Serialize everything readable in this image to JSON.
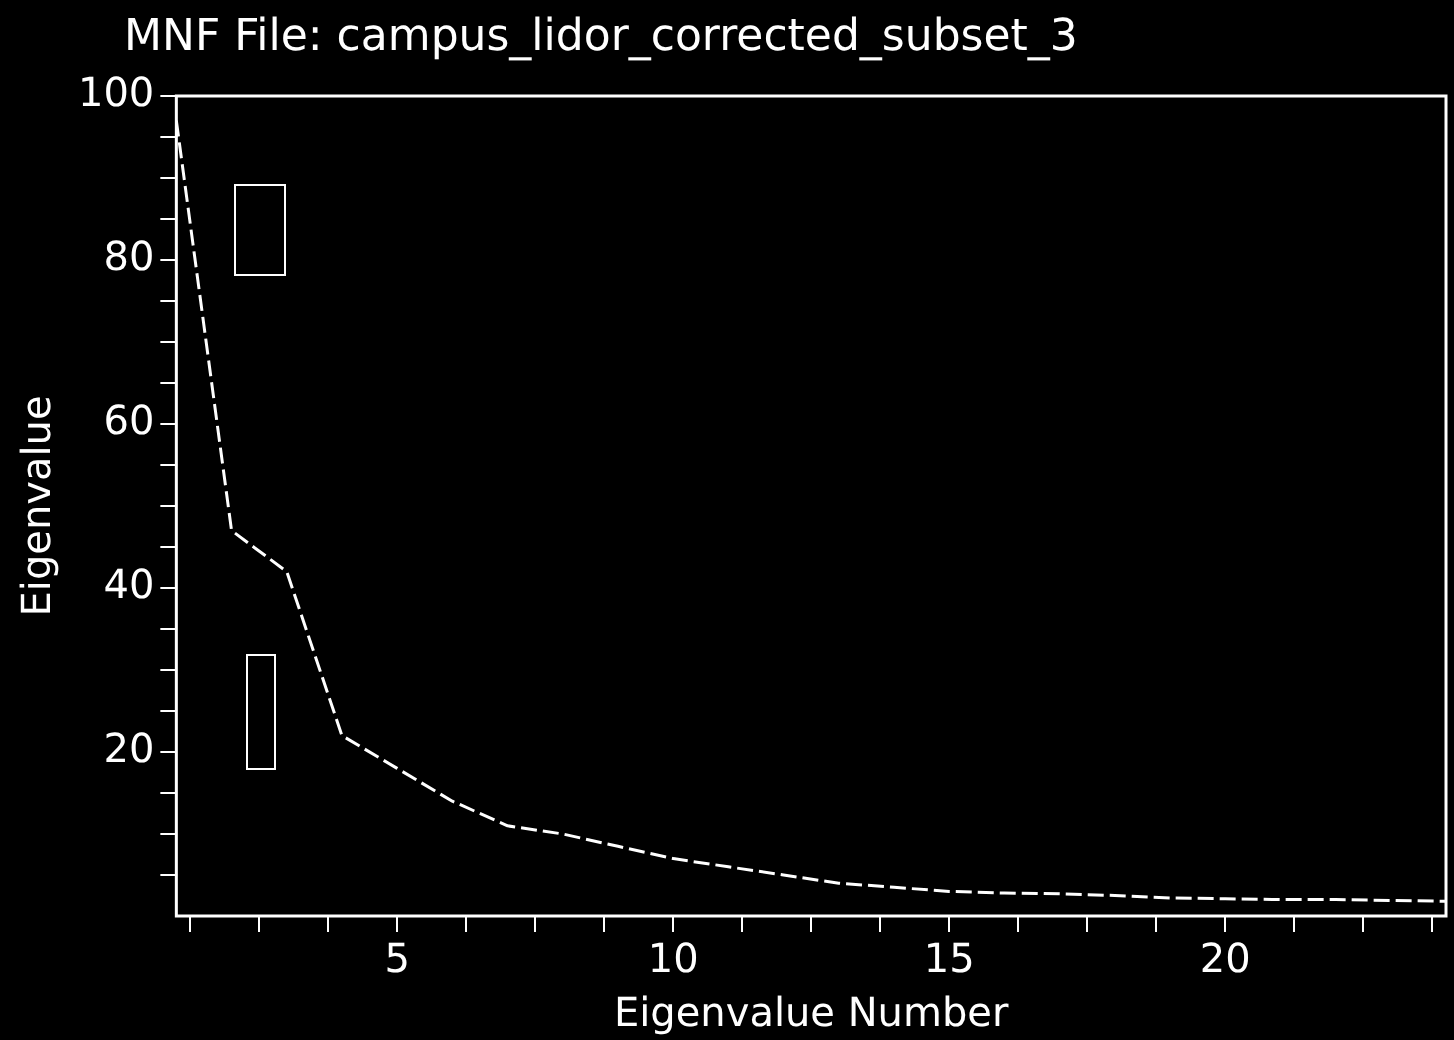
{
  "chart_data": {
    "type": "line",
    "title": "MNF File: campus_lidor_corrected_subset_3",
    "xlabel": "Eigenvalue Number",
    "ylabel": "Eigenvalue",
    "x": [
      1,
      2,
      3,
      4,
      5,
      6,
      7,
      8,
      9,
      10,
      11,
      12,
      13,
      14,
      15,
      16,
      17,
      18,
      19,
      20,
      21,
      22,
      23,
      24
    ],
    "series": [
      {
        "color": "#ffffff",
        "values": [
          97,
          47,
          42,
          22,
          18,
          14,
          11,
          10,
          8.5,
          7,
          6,
          5,
          4,
          3.5,
          3,
          2.8,
          2.7,
          2.5,
          2.2,
          2.1,
          2,
          2,
          1.9,
          1.8
        ]
      }
    ],
    "xlim": [
      1,
      24
    ],
    "xticks": [
      {
        "value": 1.25,
        "label": null
      },
      {
        "value": 2.5,
        "label": null
      },
      {
        "value": 3.75,
        "label": null
      },
      5,
      {
        "value": 6.25,
        "label": null
      },
      {
        "value": 7.5,
        "label": null
      },
      {
        "value": 8.75,
        "label": null
      },
      10,
      {
        "value": 11.25,
        "label": null
      },
      {
        "value": 12.5,
        "label": null
      },
      {
        "value": 13.75,
        "label": null
      },
      15,
      {
        "value": 16.25,
        "label": null
      },
      {
        "value": 17.5,
        "label": null
      },
      {
        "value": 18.75,
        "label": null
      },
      20,
      {
        "value": 21.25,
        "label": null
      },
      {
        "value": 22.5,
        "label": null
      },
      {
        "value": 23.75,
        "label": null
      }
    ],
    "ylim": [
      0,
      100
    ],
    "yticks": [
      {
        "value": 5,
        "label": null
      },
      {
        "value": 10,
        "label": null
      },
      {
        "value": 15,
        "label": null
      },
      20,
      {
        "value": 25,
        "label": null
      },
      {
        "value": 30,
        "label": null
      },
      {
        "value": 35,
        "label": null
      },
      40,
      {
        "value": 45,
        "label": null
      },
      {
        "value": 50,
        "label": null
      },
      {
        "value": 55,
        "label": null
      },
      60,
      {
        "value": 65,
        "label": null
      },
      {
        "value": 70,
        "label": null
      },
      {
        "value": 75,
        "label": null
      },
      80,
      {
        "value": 85,
        "label": null
      },
      {
        "value": 90,
        "label": null
      },
      {
        "value": 95,
        "label": null
      },
      100
    ],
    "grid": false,
    "legend": false,
    "marker": "none",
    "line_style": "dashed"
  }
}
